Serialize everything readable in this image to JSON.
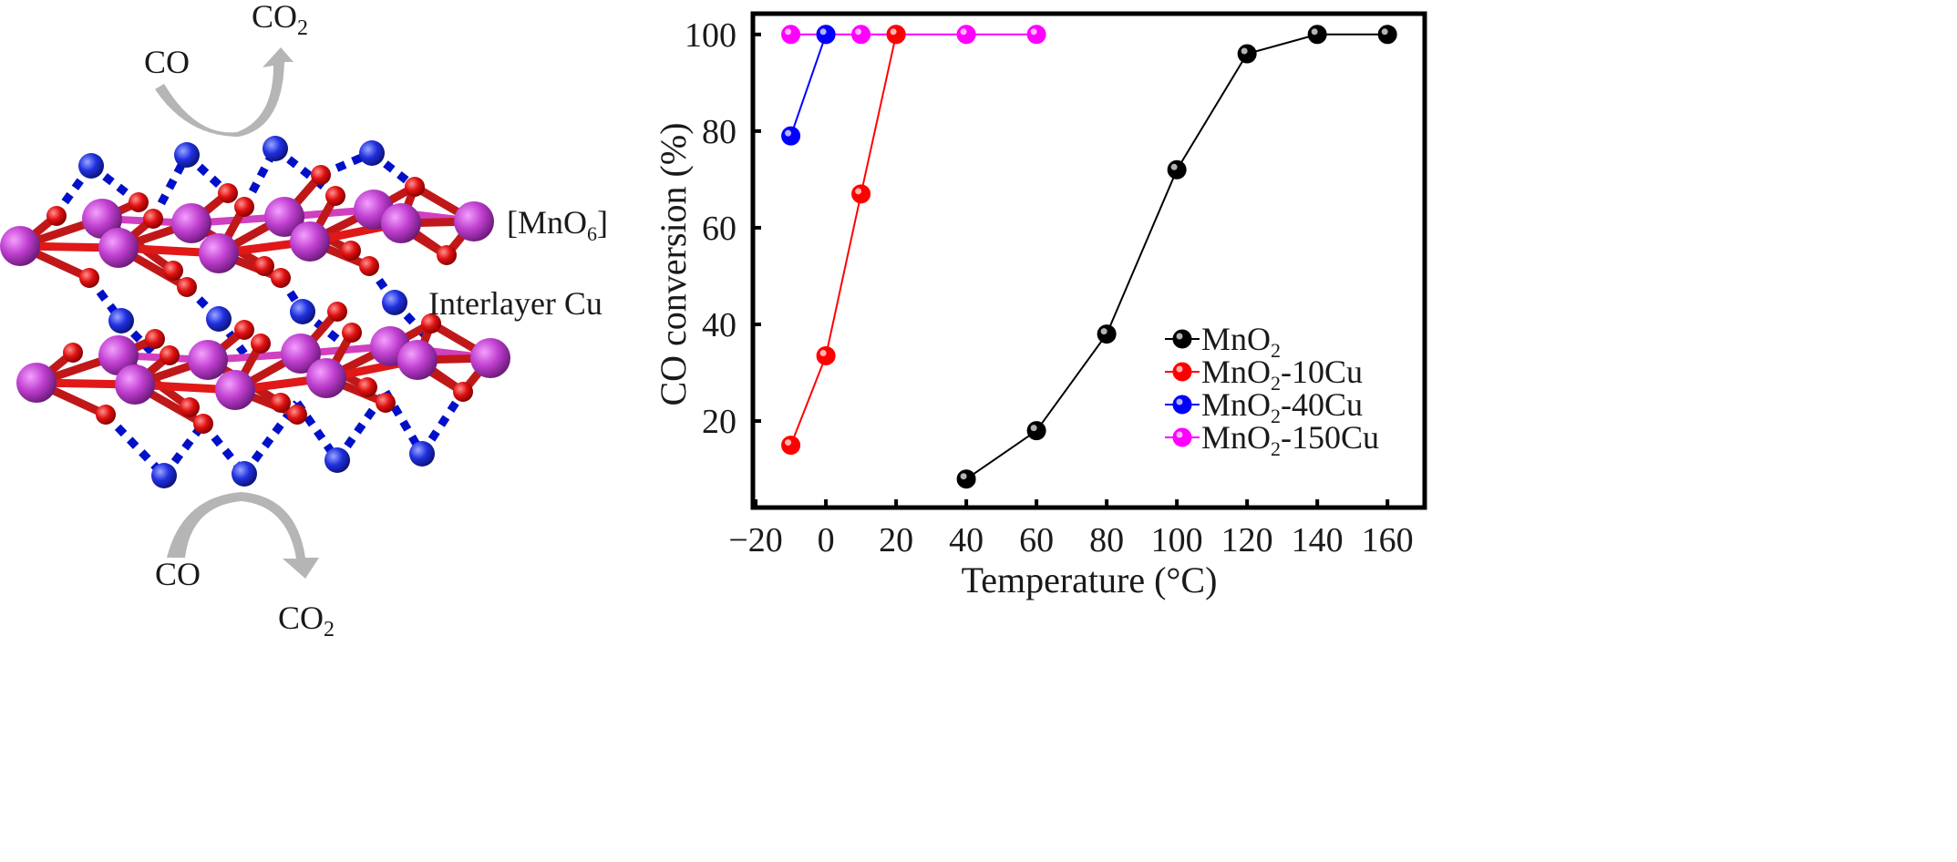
{
  "diagram": {
    "top_reaction": {
      "reactant": "CO",
      "product": "CO",
      "product_sub": "2"
    },
    "bottom_reaction": {
      "reactant": "CO",
      "product": "CO",
      "product_sub": "2"
    },
    "mno6_label": {
      "pre": "[MnO",
      "sub": "6",
      "post": "]"
    },
    "cu_label": "Interlayer Cu",
    "colors": {
      "mn": "#c040d0",
      "o": "#e01010",
      "cu": "#2030e0",
      "arrow": "#aaaaaa"
    }
  },
  "chart_data": {
    "type": "line",
    "title": "",
    "xlabel": "Temperature (°C)",
    "ylabel": "CO conversion (%)",
    "xlim": [
      -20.8,
      170.6
    ],
    "ylim": [
      2.1,
      104.3
    ],
    "xticks": [
      -20,
      0,
      20,
      40,
      60,
      80,
      100,
      120,
      140,
      160
    ],
    "xtick_labels": [
      "−20",
      "0",
      "20",
      "40",
      "60",
      "80",
      "100",
      "120",
      "140",
      "160"
    ],
    "yticks": [
      20,
      40,
      60,
      80,
      100
    ],
    "ytick_labels": [
      "20",
      "40",
      "60",
      "80",
      "100"
    ],
    "grid": false,
    "legend_position": "bottom-right",
    "series": [
      {
        "name": "MnO2",
        "label_main": "MnO",
        "label_sub": "2",
        "label_tail": "",
        "color": "#000000",
        "x": [
          40,
          60,
          80,
          100,
          120,
          140,
          160
        ],
        "y": [
          8,
          18,
          38,
          72,
          96,
          100,
          100
        ]
      },
      {
        "name": "MnO2-10Cu",
        "label_main": "MnO",
        "label_sub": "2",
        "label_tail": "-10Cu",
        "color": "#ff0000",
        "x": [
          -10,
          0,
          10,
          20
        ],
        "y": [
          15,
          33.5,
          67,
          100
        ]
      },
      {
        "name": "MnO2-40Cu",
        "label_main": "MnO",
        "label_sub": "2",
        "label_tail": "-40Cu",
        "color": "#0000ff",
        "x": [
          -10,
          0
        ],
        "y": [
          79,
          100
        ]
      },
      {
        "name": "MnO2-150Cu",
        "label_main": "MnO",
        "label_sub": "2",
        "label_tail": "-150Cu",
        "color": "#ff00ff",
        "x": [
          -10,
          0,
          10,
          20,
          40,
          60
        ],
        "y": [
          100,
          100,
          100,
          100,
          100,
          100
        ]
      }
    ]
  }
}
